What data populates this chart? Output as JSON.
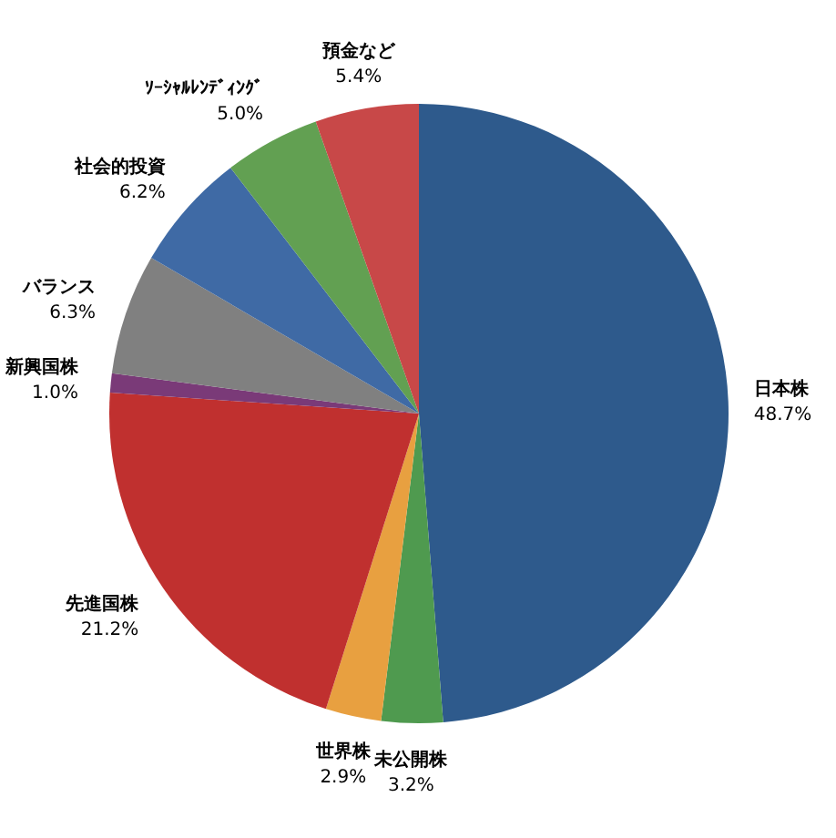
{
  "chart_data": {
    "type": "pie",
    "categories": [
      "日本株",
      "未公開株",
      "世界株",
      "先進国株",
      "新興国株",
      "バランス",
      "社会的投資",
      "ｿｰｼｬﾙﾚﾝﾃﾞｨﾝｸﾞ",
      "預金など"
    ],
    "values": [
      48.7,
      3.2,
      2.9,
      21.2,
      1.0,
      6.3,
      6.2,
      5.0,
      5.4
    ],
    "value_labels": [
      "48.7%",
      "3.2%",
      "2.9%",
      "21.2%",
      "1.0%",
      "6.3%",
      "6.2%",
      "5.0%",
      "5.4%"
    ],
    "colors": [
      "#2e5a8c",
      "#4f9a4f",
      "#e8a040",
      "#c0302f",
      "#7a3a78",
      "#808080",
      "#3f6aa5",
      "#62a052",
      "#c84848"
    ]
  }
}
